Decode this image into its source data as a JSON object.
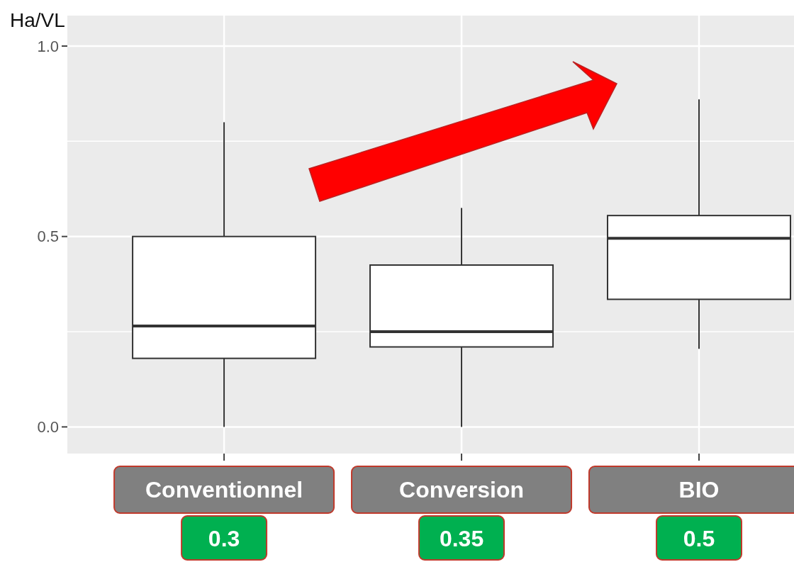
{
  "chart_data": {
    "type": "box",
    "ylabel": "Ha/VL",
    "categories": [
      "Conventionnel",
      "Conversion",
      "BIO"
    ],
    "boxes": [
      {
        "low": 0,
        "q1": 0.18,
        "median": 0.265,
        "q3": 0.5,
        "high": 0.8
      },
      {
        "low": 0,
        "q1": 0.21,
        "median": 0.25,
        "q3": 0.425,
        "high": 0.575
      },
      {
        "low": 0.205,
        "q1": 0.335,
        "median": 0.495,
        "q3": 0.555,
        "high": 0.86
      }
    ],
    "ylim": [
      -0.07,
      1.08
    ],
    "yticks": [
      {
        "value": 0,
        "label": "0.0"
      },
      {
        "value": 0.25,
        "label": null
      },
      {
        "value": 0.5,
        "label": "0.5"
      },
      {
        "value": 0.75,
        "label": null
      },
      {
        "value": 1,
        "label": "1.0"
      }
    ],
    "grid": true,
    "annotations": [
      "0.3",
      "0.35",
      "0.5"
    ]
  }
}
